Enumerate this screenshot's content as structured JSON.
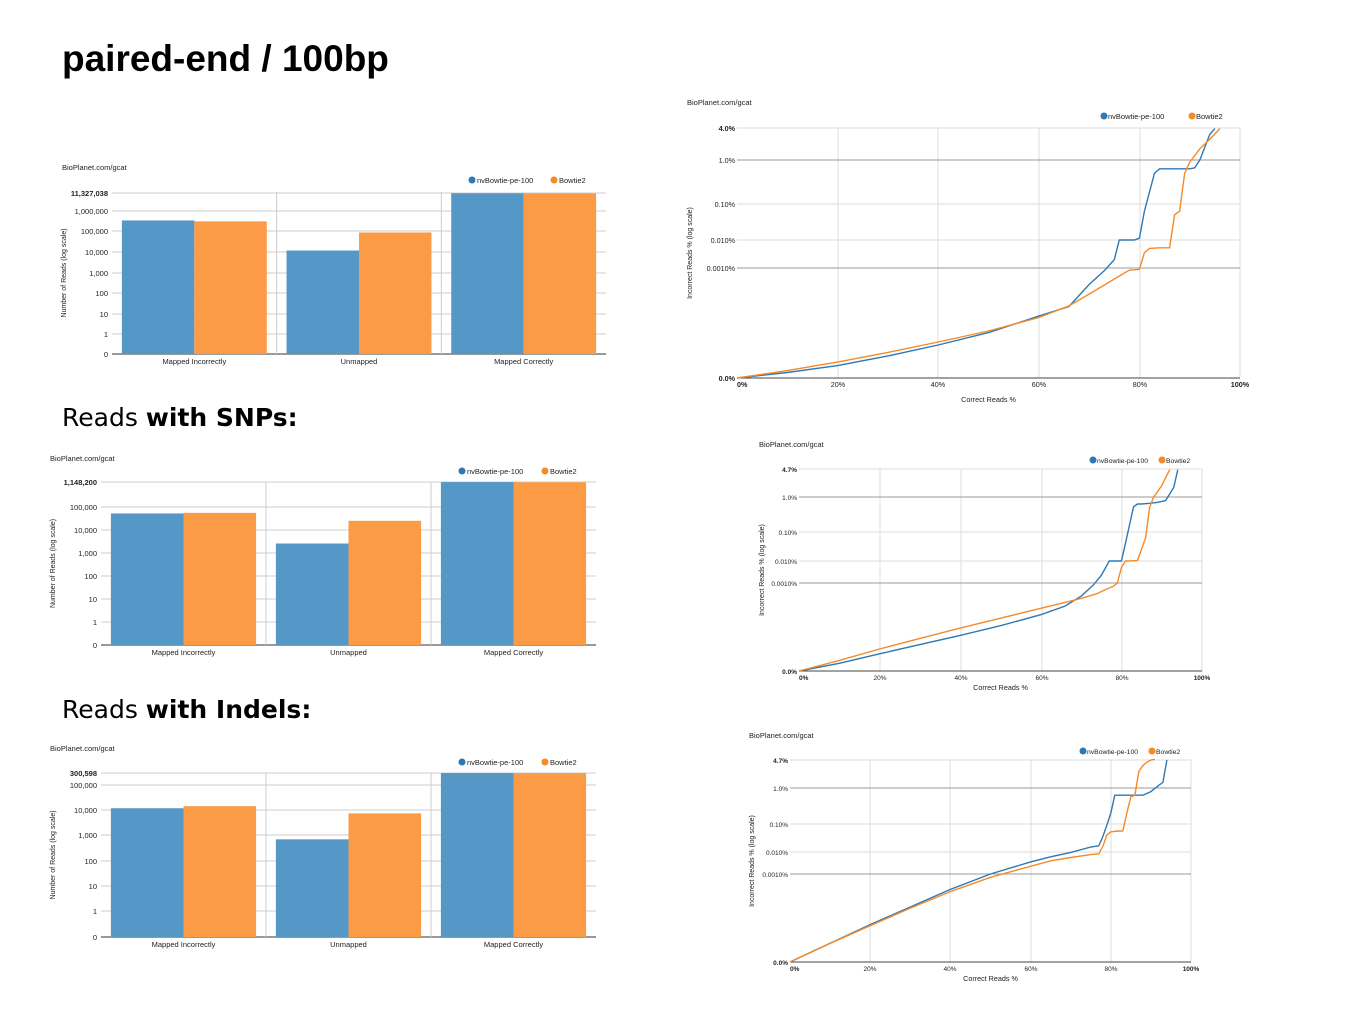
{
  "page": {
    "title": "paired-end / 100bp",
    "sections": [
      {
        "prefix": "Reads ",
        "bold": "with SNPs:"
      },
      {
        "prefix": "Reads ",
        "bold": "with Indels:"
      }
    ]
  },
  "colors": {
    "nvBowtie": "#2e78b6",
    "Bowtie2": "#f58a27",
    "bar_nvBowtie": "#5598c8",
    "bar_Bowtie2": "#fb9b45"
  },
  "chart_data": [
    {
      "type": "bar",
      "source": "BioPlanet.com/gcat",
      "ylabel": "Number of Reads (log scale)",
      "y_scale": "log",
      "y_ticks": [
        "11,327,038",
        "1,000,000",
        "100,000",
        "10,000",
        "1,000",
        "100",
        "10",
        "1",
        "0"
      ],
      "y_max": 11327038,
      "categories": [
        "Mapped Incorrectly",
        "Unmapped",
        "Mapped Correctly"
      ],
      "series": [
        {
          "name": "nvBowtie-pe-100",
          "values": [
            480000,
            15000,
            11000000
          ]
        },
        {
          "name": "Bowtie2",
          "values": [
            430000,
            120000,
            10900000
          ]
        }
      ],
      "legend": "top-right"
    },
    {
      "type": "line",
      "source": "BioPlanet.com/gcat",
      "xlabel": "Correct Reads %",
      "ylabel": "Incorrect Reads % (log scale)",
      "x_ticks": [
        "0%",
        "20%",
        "40%",
        "60%",
        "80%",
        "100%"
      ],
      "y_ticks": [
        "4.0%",
        "1.0%",
        "0.10%",
        "0.010%",
        "0.0010%",
        "0.0%"
      ],
      "y_top": "4.0%",
      "xlim": [
        0,
        100
      ],
      "series": [
        {
          "name": "nvBowtie-pe-100",
          "x": [
            0,
            10,
            20,
            30,
            40,
            50,
            60,
            66,
            70,
            73,
            75,
            76,
            77,
            79,
            80,
            81,
            83,
            84,
            85,
            86,
            88,
            90,
            91,
            92,
            93,
            94,
            95
          ],
          "y": [
            0.0,
            0.2,
            0.45,
            0.8,
            1.2,
            1.65,
            2.25,
            2.6,
            3.4,
            3.9,
            4.3,
            5.0,
            5.0,
            5.0,
            5.05,
            5.8,
            6.7,
            6.8,
            6.8,
            6.8,
            6.8,
            6.8,
            6.82,
            7.0,
            7.4,
            7.8,
            7.98
          ]
        },
        {
          "name": "Bowtie2",
          "x": [
            0,
            10,
            20,
            30,
            40,
            50,
            60,
            66,
            70,
            75,
            78,
            80,
            81,
            82,
            84,
            86,
            87,
            88,
            89,
            90,
            92,
            94,
            96
          ],
          "y": [
            0.0,
            0.27,
            0.58,
            0.93,
            1.31,
            1.71,
            2.2,
            2.62,
            3.05,
            3.6,
            3.92,
            3.95,
            4.55,
            4.7,
            4.72,
            4.72,
            5.7,
            5.8,
            6.7,
            6.95,
            7.35,
            7.65,
            7.98
          ]
        }
      ],
      "legend": "top-right"
    },
    {
      "type": "bar",
      "source": "BioPlanet.com/gcat",
      "ylabel": "Number of Reads (log scale)",
      "y_scale": "log",
      "y_ticks": [
        "1,148,200",
        "100,000",
        "10,000",
        "1,000",
        "100",
        "10",
        "1",
        "0"
      ],
      "y_max": 1148200,
      "categories": [
        "Mapped Incorrectly",
        "Unmapped",
        "Mapped Correctly"
      ],
      "series": [
        {
          "name": "nvBowtie-pe-100",
          "values": [
            50000,
            2500,
            1140000
          ]
        },
        {
          "name": "Bowtie2",
          "values": [
            53000,
            24000,
            1120000
          ]
        }
      ],
      "legend": "top-right"
    },
    {
      "type": "line",
      "source": "BioPlanet.com/gcat",
      "xlabel": "Correct Reads %",
      "ylabel": "Incorrect Reads % (log scale)",
      "x_ticks": [
        "0%",
        "20%",
        "40%",
        "60%",
        "80%",
        "100%"
      ],
      "y_ticks": [
        "4.7%",
        "1.0%",
        "0.10%",
        "0.010%",
        "0.0010%",
        "0.0%"
      ],
      "y_top": "4.7%",
      "xlim": [
        0,
        100
      ],
      "series": [
        {
          "name": "nvBowtie-pe-100",
          "x": [
            0,
            10,
            20,
            30,
            40,
            50,
            60,
            66,
            70,
            73,
            75,
            77,
            78,
            79,
            80,
            81,
            83,
            84,
            85,
            87,
            89,
            91,
            93,
            94
          ],
          "y": [
            0.0,
            0.35,
            0.78,
            1.2,
            1.62,
            2.06,
            2.56,
            2.95,
            3.4,
            3.9,
            4.35,
            5.0,
            5.0,
            5.0,
            5.0,
            5.6,
            6.72,
            6.8,
            6.8,
            6.82,
            6.85,
            6.9,
            7.35,
            7.98
          ]
        },
        {
          "name": "Bowtie2",
          "x": [
            0,
            10,
            20,
            30,
            40,
            50,
            60,
            66,
            70,
            74,
            76,
            78,
            79,
            80,
            81,
            82,
            84,
            86,
            87,
            88,
            89,
            90,
            91,
            92
          ],
          "y": [
            0.0,
            0.48,
            1.0,
            1.48,
            1.95,
            2.4,
            2.85,
            3.12,
            3.3,
            3.52,
            3.7,
            3.85,
            4.0,
            4.7,
            5.0,
            5.0,
            5.02,
            5.8,
            6.7,
            7.0,
            7.2,
            7.4,
            7.7,
            7.98
          ]
        }
      ],
      "legend": "top-right"
    },
    {
      "type": "bar",
      "source": "BioPlanet.com/gcat",
      "ylabel": "Number of Reads (log scale)",
      "y_scale": "log",
      "y_ticks": [
        "300,598",
        "100,000",
        "10,000",
        "1,000",
        "100",
        "10",
        "1",
        "0"
      ],
      "y_max": 300598,
      "categories": [
        "Mapped Incorrectly",
        "Unmapped",
        "Mapped Correctly"
      ],
      "series": [
        {
          "name": "nvBowtie-pe-100",
          "values": [
            12000,
            700,
            299000
          ]
        },
        {
          "name": "Bowtie2",
          "values": [
            14500,
            7500,
            295000
          ]
        }
      ],
      "legend": "top-right"
    },
    {
      "type": "line",
      "source": "BioPlanet.com/gcat",
      "xlabel": "Correct Reads %",
      "ylabel": "Incorrect Reads % (log scale)",
      "x_ticks": [
        "0%",
        "20%",
        "40%",
        "60%",
        "80%",
        "100%"
      ],
      "y_ticks": [
        "4.7%",
        "1.0%",
        "0.10%",
        "0.010%",
        "0.0010%",
        "0.0%"
      ],
      "y_top": "4.7%",
      "xlim": [
        0,
        100
      ],
      "series": [
        {
          "name": "nvBowtie-pe-100",
          "x": [
            0,
            10,
            20,
            30,
            40,
            50,
            60,
            65,
            70,
            75,
            77,
            78,
            79,
            80,
            81,
            83,
            85,
            86,
            88,
            90,
            92,
            93,
            94
          ],
          "y": [
            0.0,
            0.85,
            1.7,
            2.5,
            3.3,
            4.0,
            4.55,
            4.78,
            4.98,
            5.18,
            5.22,
            5.55,
            5.95,
            6.3,
            6.8,
            6.8,
            6.8,
            6.8,
            6.8,
            6.9,
            7.1,
            7.2,
            8.0
          ]
        },
        {
          "name": "Bowtie2",
          "x": [
            0,
            10,
            20,
            30,
            40,
            50,
            60,
            65,
            70,
            75,
            77,
            78,
            79,
            80,
            82,
            83,
            84,
            85,
            86,
            87,
            88,
            89,
            90,
            91
          ],
          "y": [
            0.0,
            0.85,
            1.65,
            2.45,
            3.2,
            3.85,
            4.35,
            4.6,
            4.75,
            4.88,
            4.92,
            5.2,
            5.6,
            5.72,
            5.75,
            5.75,
            6.3,
            6.75,
            6.8,
            7.6,
            7.8,
            7.92,
            8.0,
            8.08
          ]
        }
      ],
      "legend": "top-right"
    }
  ]
}
